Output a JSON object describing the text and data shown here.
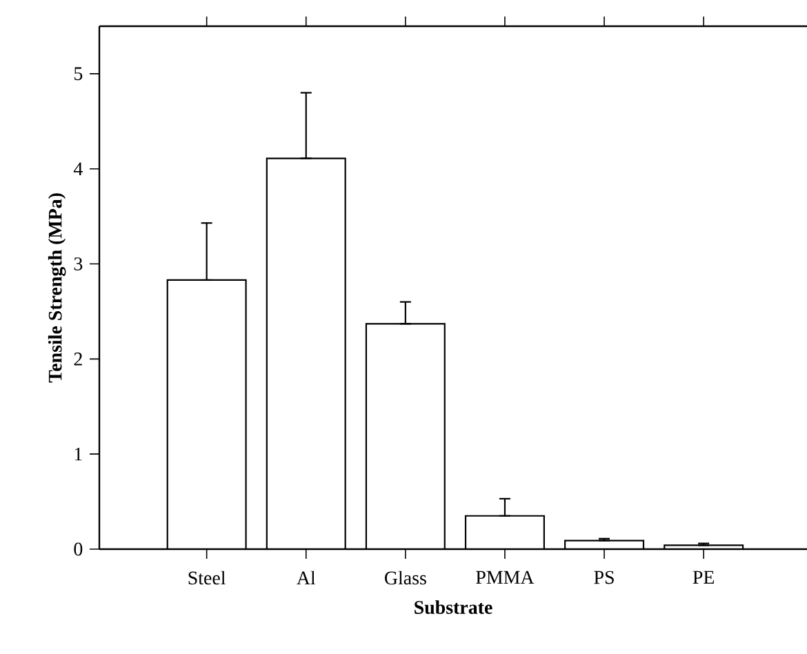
{
  "chart_data": {
    "type": "bar",
    "xlabel": "Substrate",
    "ylabel": "Tensile Strength (MPa)",
    "categories": [
      "Steel",
      "Al",
      "Glass",
      "PMMA",
      "PS",
      "PE"
    ],
    "values": [
      2.83,
      4.11,
      2.37,
      0.35,
      0.09,
      0.04
    ],
    "errors": [
      [
        2.83,
        3.43
      ],
      [
        4.11,
        4.8
      ],
      [
        2.37,
        2.6
      ],
      [
        0.35,
        0.53
      ],
      [
        0.09,
        0.11
      ],
      [
        0.04,
        0.06
      ]
    ],
    "color": "#000000",
    "ylim": [
      0,
      5.5
    ],
    "yticks": [
      0,
      1,
      2,
      3,
      4,
      5
    ],
    "grid": false
  }
}
